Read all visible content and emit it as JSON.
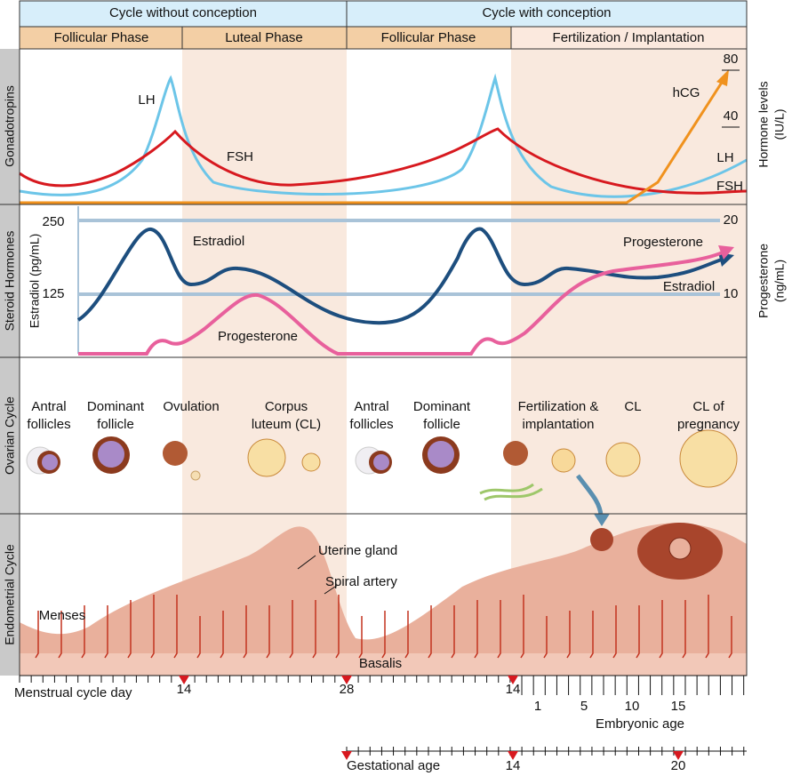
{
  "header": {
    "without": "Cycle without conception",
    "with": "Cycle with conception",
    "phases": [
      "Follicular Phase",
      "Luteal Phase",
      "Follicular Phase",
      "Fertilization / Implantation"
    ]
  },
  "side_labels": [
    "Gonadotropins",
    "Steroid Hormones",
    "Ovarian Cycle",
    "Endometrial Cycle"
  ],
  "gonadotropins": {
    "lh": "LH",
    "fsh": "FSH",
    "hcg": "hCG",
    "lh_end": "LH",
    "fsh_end": "FSH",
    "axis_title": [
      "Hormone levels",
      "(IU/L)"
    ],
    "ticks": [
      80,
      40
    ]
  },
  "steroids": {
    "left_title": "Estradiol (pg/mL)",
    "left_ticks": [
      250,
      125
    ],
    "right_title": [
      "Progesterone",
      "(ng/mL)"
    ],
    "right_ticks": [
      20,
      10
    ],
    "estradiol": "Estradiol",
    "progesterone": "Progesterone",
    "progesterone_end": "Progesterone",
    "estradiol_end": "Estradiol"
  },
  "ovarian": [
    [
      "Antral",
      "follicles"
    ],
    [
      "Dominant",
      "follicle"
    ],
    [
      "Ovulation"
    ],
    [
      "Corpus",
      "luteum (CL)"
    ],
    [
      "Antral",
      "follicles"
    ],
    [
      "Dominant",
      "follicle"
    ],
    [
      "Fertilization &",
      "implantation"
    ],
    [
      "CL"
    ],
    [
      "CL of",
      "pregnancy"
    ]
  ],
  "endometrial": {
    "uterine_gland": "Uterine gland",
    "spiral_artery": "Spiral artery",
    "menses": "Menses",
    "basalis": "Basalis"
  },
  "day_axis": {
    "title": "Menstrual cycle day",
    "ticks": [
      14,
      28,
      14
    ]
  },
  "embryonic_axis": {
    "title": "Embryonic age",
    "ticks": [
      1,
      5,
      10,
      15
    ]
  },
  "gestational_axis": {
    "title": "Gestational age",
    "ticks": [
      14,
      20
    ]
  }
}
